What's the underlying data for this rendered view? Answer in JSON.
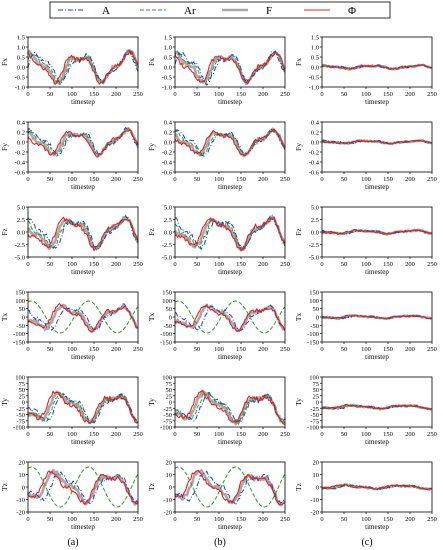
{
  "legend": {
    "items": [
      {
        "label": "A",
        "color": "#1f3fbf",
        "style": "dashdot"
      },
      {
        "label": "Ar",
        "color": "#2e9a2e",
        "style": "dashed"
      },
      {
        "label": "F",
        "color": "#a9a9a9",
        "style": "solid-thick"
      },
      {
        "label": "Φ",
        "color": "#e02020",
        "style": "solid"
      }
    ]
  },
  "columns": [
    {
      "label": "(a)"
    },
    {
      "label": "(b)"
    },
    {
      "label": "(c)"
    }
  ],
  "chart_data": [
    {
      "type": "line",
      "ylabel": "Fx",
      "xlabel": "timestep",
      "ylim": [
        -1.0,
        1.5
      ],
      "yticks": [
        "-1.0",
        "-0.5",
        "0.0",
        "0.5",
        "1.0",
        "1.5"
      ],
      "xlim": [
        0,
        250
      ],
      "xticks": [
        "0",
        "50",
        "100",
        "150",
        "200",
        "250"
      ],
      "amplitude": 0.6,
      "grid": false
    },
    {
      "type": "line",
      "ylabel": "Fy",
      "xlabel": "timestep",
      "ylim": [
        -0.6,
        0.4
      ],
      "yticks": [
        "-0.6",
        "-0.4",
        "-0.2",
        "0.0",
        "0.2",
        "0.4"
      ],
      "xlim": [
        0,
        250
      ],
      "xticks": [
        "0",
        "50",
        "100",
        "150",
        "200",
        "250"
      ],
      "amplitude": 0.2,
      "grid": false
    },
    {
      "type": "line",
      "ylabel": "Fz",
      "xlabel": "timestep",
      "ylim": [
        -5.0,
        5.0
      ],
      "yticks": [
        "-5.0",
        "-2.5",
        "0.0",
        "2.5",
        "5.0"
      ],
      "xlim": [
        0,
        250
      ],
      "xticks": [
        "0",
        "50",
        "100",
        "150",
        "200",
        "250"
      ],
      "amplitude": 2.5,
      "grid": false
    },
    {
      "type": "line",
      "ylabel": "Tx",
      "xlabel": "timestep",
      "ylim": [
        -150,
        150
      ],
      "yticks": [
        "-150",
        "-100",
        "-50",
        "0",
        "50",
        "100",
        "150"
      ],
      "xlim": [
        0,
        250
      ],
      "xticks": [
        "0",
        "50",
        "100",
        "150",
        "200",
        "250"
      ],
      "amplitude": 60,
      "grid": false
    },
    {
      "type": "line",
      "ylabel": "Ty",
      "xlabel": "timestep",
      "ylim": [
        -100,
        150
      ],
      "yticks": [
        "-100",
        "-75",
        "-50",
        "-25",
        "0",
        "25",
        "50",
        "75",
        "100"
      ],
      "xlim": [
        0,
        250
      ],
      "xticks": [
        "0",
        "50",
        "100",
        "150",
        "200",
        "250"
      ],
      "amplitude": 60,
      "grid": false
    },
    {
      "type": "line",
      "ylabel": "Tz",
      "xlabel": "timestep",
      "ylim": [
        -20,
        20
      ],
      "yticks": [
        "-20",
        "-10",
        "0",
        "10",
        "20"
      ],
      "xlim": [
        0,
        250
      ],
      "xticks": [
        "0",
        "50",
        "100",
        "150",
        "200",
        "250"
      ],
      "amplitude": 10,
      "grid": false
    }
  ]
}
